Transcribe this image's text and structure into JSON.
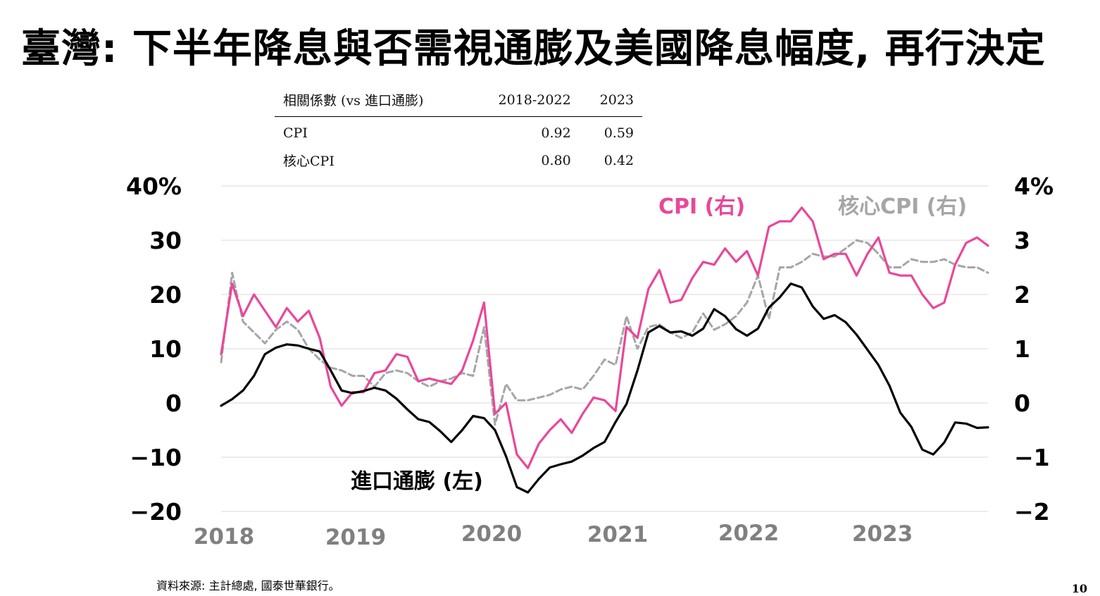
{
  "title": "臺灣: 下半年降息與否需視通膨及美國降息幅度, 再行決定",
  "correlation_table": {
    "headers": [
      "相關係數 (vs 進口通膨)",
      "2018-2022",
      "2023"
    ],
    "rows": [
      {
        "label": "CPI",
        "v1": "0.92",
        "v2": "0.59"
      },
      {
        "label": "核心CPI",
        "v1": "0.80",
        "v2": "0.42"
      }
    ]
  },
  "source": "資料來源: 主計總處, 國泰世華銀行。",
  "page_number": "10",
  "chart_data": {
    "type": "line",
    "left_axis": {
      "ticks": [
        "40%",
        "30",
        "20",
        "10",
        "0",
        "−10",
        "−20"
      ],
      "values": [
        40,
        30,
        20,
        10,
        0,
        -10,
        -20
      ],
      "ylim": [
        -20,
        40
      ]
    },
    "right_axis": {
      "ticks": [
        "4%",
        "3",
        "2",
        "1",
        "0",
        "−1",
        "−2"
      ],
      "values": [
        4,
        3,
        2,
        1,
        0,
        -1,
        -2
      ],
      "ylim": [
        -2,
        4
      ]
    },
    "x_axis": {
      "labels": [
        "2018",
        "2019",
        "2020",
        "2021",
        "2022",
        "2023"
      ],
      "start": "2018-01",
      "end": "2023-11"
    },
    "grid": true,
    "colors": {
      "import": "#000000",
      "cpi": "#e8489a",
      "core": "#a6a6a6"
    },
    "series": [
      {
        "name": "進口通膨 (左)",
        "axis": "left",
        "color": "#000000",
        "style": "solid",
        "values": [
          -0.5,
          0.7,
          2.3,
          5.0,
          9.0,
          10.2,
          10.8,
          10.6,
          10.0,
          9.5,
          6.0,
          2.3,
          1.8,
          2.2,
          2.8,
          2.3,
          0.8,
          -1.2,
          -3.0,
          -3.5,
          -5.2,
          -7.2,
          -5.0,
          -2.4,
          -2.8,
          -5.0,
          -9.8,
          -15.5,
          -16.5,
          -14.0,
          -11.9,
          -11.3,
          -10.8,
          -9.7,
          -8.3,
          -7.2,
          -3.5,
          -0.2,
          6.0,
          13.0,
          14.2,
          13.0,
          13.2,
          12.4,
          13.7,
          17.3,
          16.0,
          13.6,
          12.4,
          13.7,
          17.6,
          19.5,
          22.0,
          21.3,
          17.8,
          15.5,
          16.2,
          14.9,
          12.6,
          9.8,
          7.0,
          3.2,
          -1.8,
          -4.4,
          -8.6,
          -9.5,
          -7.3,
          -3.6,
          -3.8,
          -4.6,
          -4.5
        ]
      },
      {
        "name": "CPI (右)",
        "axis": "right",
        "color": "#e8489a",
        "style": "solid",
        "values": [
          0.9,
          2.2,
          1.6,
          2.0,
          1.7,
          1.4,
          1.75,
          1.5,
          1.7,
          1.2,
          0.3,
          -0.05,
          0.2,
          0.2,
          0.55,
          0.6,
          0.9,
          0.85,
          0.4,
          0.45,
          0.4,
          0.35,
          0.6,
          1.15,
          1.85,
          -0.2,
          0.0,
          -0.95,
          -1.2,
          -0.75,
          -0.5,
          -0.3,
          -0.55,
          -0.2,
          0.1,
          0.05,
          -0.15,
          1.4,
          1.2,
          2.1,
          2.45,
          1.85,
          1.9,
          2.3,
          2.6,
          2.55,
          2.85,
          2.6,
          2.8,
          2.35,
          3.25,
          3.35,
          3.35,
          3.6,
          3.35,
          2.65,
          2.75,
          2.75,
          2.35,
          2.75,
          3.05,
          2.4,
          2.35,
          2.35,
          2.0,
          1.75,
          1.85,
          2.55,
          2.95,
          3.05,
          2.9
        ]
      },
      {
        "name": "核心CPI (右)",
        "axis": "right",
        "color": "#a6a6a6",
        "style": "dashed",
        "values": [
          0.75,
          2.4,
          1.5,
          1.3,
          1.1,
          1.35,
          1.5,
          1.35,
          1.0,
          0.8,
          0.65,
          0.6,
          0.5,
          0.5,
          0.3,
          0.55,
          0.6,
          0.55,
          0.4,
          0.3,
          0.4,
          0.45,
          0.55,
          0.5,
          1.4,
          -0.4,
          0.35,
          0.05,
          0.05,
          0.1,
          0.15,
          0.25,
          0.3,
          0.25,
          0.5,
          0.8,
          0.7,
          1.6,
          1.0,
          1.4,
          1.45,
          1.3,
          1.2,
          1.3,
          1.65,
          1.35,
          1.45,
          1.6,
          1.85,
          2.35,
          1.55,
          2.5,
          2.5,
          2.6,
          2.75,
          2.7,
          2.7,
          2.85,
          3.0,
          2.95,
          2.75,
          2.5,
          2.5,
          2.65,
          2.6,
          2.6,
          2.65,
          2.55,
          2.5,
          2.5,
          2.4
        ]
      }
    ],
    "annotations": [
      {
        "text": "CPI (右)",
        "color": "#e8489a"
      },
      {
        "text": "核心CPI (右)",
        "color": "#a6a6a6"
      },
      {
        "text": "進口通膨 (左)",
        "color": "#000000"
      }
    ]
  }
}
